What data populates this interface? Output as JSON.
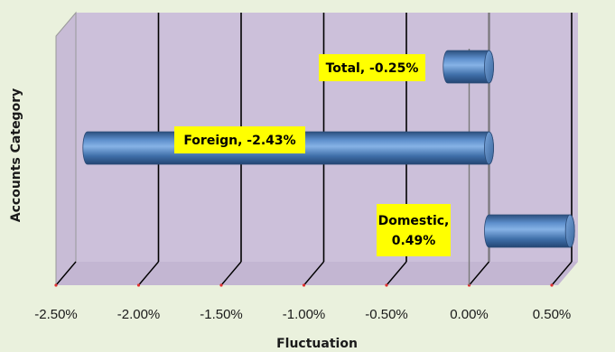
{
  "chart_data": {
    "type": "bar",
    "orientation": "horizontal",
    "style": "3d-cylinder",
    "categories": [
      "Domestic",
      "Foreign",
      "Total"
    ],
    "values": [
      0.49,
      -2.43,
      -0.25
    ],
    "data_labels": [
      [
        "Domestic,",
        "0.49%"
      ],
      [
        "Foreign, -2.43%"
      ],
      [
        "Total, -0.25%"
      ]
    ],
    "xlabel": "Fluctuation",
    "ylabel": "Accounts Category",
    "xlim": [
      -2.5,
      0.5
    ],
    "xticks": [
      "-2.50%",
      "-2.00%",
      "-1.50%",
      "-1.00%",
      "-0.50%",
      "0.00%",
      "0.50%"
    ],
    "grid": true,
    "legend": "none",
    "colors": {
      "page_background": "#eaf1dd",
      "plot_background": "#ccc0da",
      "bar": "#4f81bd",
      "label_background": "#ffff00",
      "gridline": "#000000"
    }
  }
}
